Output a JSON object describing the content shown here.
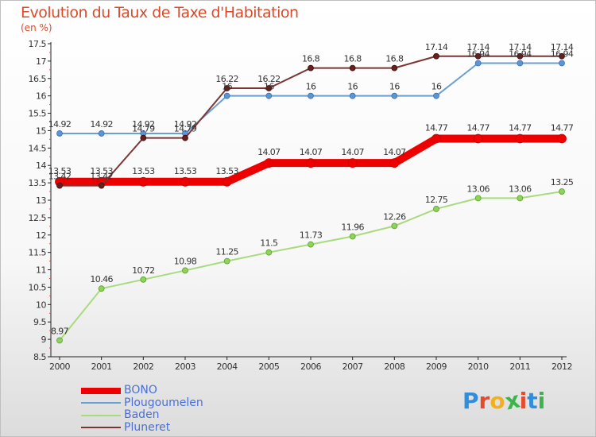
{
  "header": {
    "title": "Evolution du Taux de Taxe d'Habitation",
    "unit": "(en %)"
  },
  "logo": {
    "letters": [
      "P",
      "r",
      "o",
      "x",
      "i",
      "t",
      "i"
    ],
    "colors": [
      "#2f8fdc",
      "#e8492a",
      "#f2b01e",
      "#3bb54a",
      "#e8492a",
      "#2f8fdc",
      "#3bb54a"
    ]
  },
  "chart_data": {
    "type": "line",
    "title": "Evolution du Taux de Taxe d'Habitation",
    "ylabel": "(en %)",
    "xlabel": "",
    "ylim": [
      8.5,
      17.5
    ],
    "ytick_step": 0.5,
    "grid": false,
    "legend_position": "bottom-left",
    "x": [
      "2000",
      "2001",
      "2002",
      "2003",
      "2004",
      "2005",
      "2006",
      "2007",
      "2008",
      "2009",
      "2010",
      "2011",
      "2012"
    ],
    "series": [
      {
        "name": "BONO",
        "color": "#ee0000",
        "values": [
          13.53,
          13.53,
          13.53,
          13.53,
          13.53,
          14.07,
          14.07,
          14.07,
          14.07,
          14.77,
          14.77,
          14.77,
          14.77
        ],
        "labels": [
          "13.53",
          "13.53",
          "13.53",
          "13.53",
          "13.53",
          "14.07",
          "14.07",
          "14.07",
          "14.07",
          "14.77",
          "14.77",
          "14.77",
          "14.77"
        ]
      },
      {
        "name": "Plougoumelen",
        "color": "#6a9fd4",
        "values": [
          14.92,
          14.92,
          14.92,
          14.92,
          16,
          16,
          16,
          16,
          16,
          16,
          16.94,
          16.94,
          16.94
        ],
        "labels": [
          "14.92",
          "14.92",
          "14.92",
          "14.92",
          "16",
          "16",
          "16",
          "16",
          "16",
          "16",
          "16.94",
          "16.94",
          "16.94"
        ]
      },
      {
        "name": "Baden",
        "color": "#a8db7e",
        "values": [
          8.97,
          10.46,
          10.72,
          10.98,
          11.25,
          11.5,
          11.73,
          11.96,
          12.26,
          12.75,
          13.06,
          13.06,
          13.25
        ],
        "labels": [
          "8.97",
          "10.46",
          "10.72",
          "10.98",
          "11.25",
          "11.5",
          "11.73",
          "11.96",
          "12.26",
          "12.75",
          "13.06",
          "13.06",
          "13.25"
        ]
      },
      {
        "name": "Pluneret",
        "color": "#7a3535",
        "values": [
          13.42,
          13.42,
          14.79,
          14.79,
          16.22,
          16.22,
          16.8,
          16.8,
          16.8,
          17.14,
          17.14,
          17.14,
          17.14
        ],
        "labels": [
          "13.42",
          "13.42",
          "14.79",
          "14.79",
          "16.22",
          "16.22",
          "16.8",
          "16.8",
          "16.8",
          "17.14",
          "17.14",
          "17.14",
          "17.14"
        ]
      }
    ]
  }
}
